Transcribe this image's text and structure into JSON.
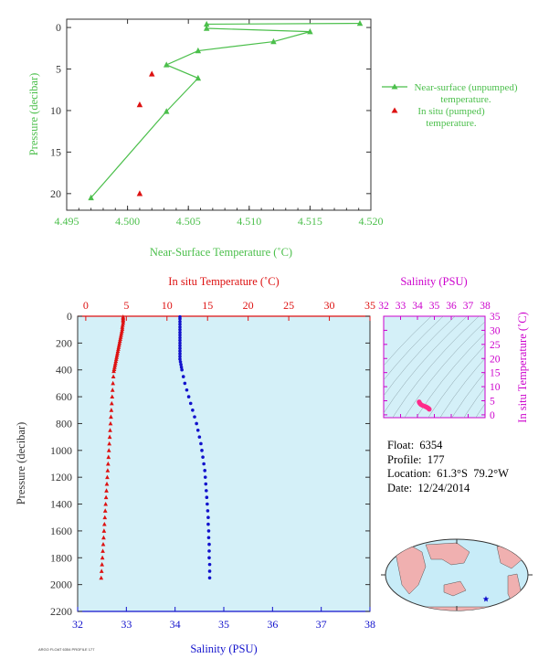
{
  "colors": {
    "green": "#4bbf4b",
    "red": "#dd1111",
    "blue": "#1111cc",
    "magenta": "#cc00cc",
    "axis_dark": "#333333",
    "plot_bg": "#d4f0f8",
    "ts_bg": "#d4f0f8",
    "map_ocean": "#c8ecf8",
    "map_land": "#f0b0b0"
  },
  "info": {
    "float": "Float:  6354",
    "profile": "Profile:  177",
    "location": "Location:  61.3°S  79.2°W",
    "date": "Date:  12/24/2014"
  },
  "footer_stamp": "ARGO FLOAT 6354 PROFILE 177",
  "chart_data": [
    {
      "type": "line",
      "xlabel": "Near-Surface Temperature (˚C)",
      "ylabel": "Pressure (decibar)",
      "xlim": [
        4.495,
        4.52
      ],
      "ylim": [
        22,
        -1
      ],
      "xticks": [
        "4.495",
        "4.500",
        "4.505",
        "4.510",
        "4.515",
        "4.520"
      ],
      "yticks": [
        "0",
        "5",
        "10",
        "15",
        "20"
      ],
      "legend_position": "right",
      "series": [
        {
          "name": "Near-surface (unpumped) temperature.",
          "marker": "triangle-line",
          "points": [
            {
              "x": 4.5191,
              "y": -0.5
            },
            {
              "x": 4.5065,
              "y": -0.4
            },
            {
              "x": 4.5065,
              "y": 0.1
            },
            {
              "x": 4.515,
              "y": 0.5
            },
            {
              "x": 4.512,
              "y": 1.7
            },
            {
              "x": 4.5058,
              "y": 2.8
            },
            {
              "x": 4.5032,
              "y": 4.5
            },
            {
              "x": 4.5058,
              "y": 6.1
            },
            {
              "x": 4.5032,
              "y": 10.1
            },
            {
              "x": 4.497,
              "y": 20.5
            }
          ]
        },
        {
          "name": "In situ (pumped) temperature.",
          "marker": "triangle",
          "points": [
            {
              "x": 4.502,
              "y": 5.6
            },
            {
              "x": 4.501,
              "y": 9.3
            },
            {
              "x": 4.501,
              "y": 20.0
            }
          ]
        }
      ]
    },
    {
      "type": "scatter",
      "ylabel": "Pressure (decibar)",
      "ylim": [
        2200,
        0
      ],
      "yticks": [
        "0",
        "200",
        "400",
        "600",
        "800",
        "1000",
        "1200",
        "1400",
        "1600",
        "1800",
        "2000",
        "2200"
      ],
      "temperature_axis": {
        "label": "In situ Temperature (˚C)",
        "lim": [
          -1,
          35
        ],
        "ticks": [
          "0",
          "5",
          "10",
          "15",
          "20",
          "25",
          "30",
          "35"
        ]
      },
      "salinity_axis": {
        "label": "Salinity (PSU)",
        "lim": [
          32,
          38
        ],
        "ticks": [
          "32",
          "33",
          "34",
          "35",
          "36",
          "37",
          "38"
        ]
      },
      "series": [
        {
          "name": "Temperature",
          "marker": "triangle",
          "points": [
            {
              "p": 5,
              "v": 4.6
            },
            {
              "p": 15,
              "v": 4.6
            },
            {
              "p": 25,
              "v": 4.6
            },
            {
              "p": 35,
              "v": 4.6
            },
            {
              "p": 50,
              "v": 4.6
            },
            {
              "p": 65,
              "v": 4.55
            },
            {
              "p": 80,
              "v": 4.5
            },
            {
              "p": 95,
              "v": 4.5
            },
            {
              "p": 110,
              "v": 4.45
            },
            {
              "p": 125,
              "v": 4.4
            },
            {
              "p": 140,
              "v": 4.35
            },
            {
              "p": 155,
              "v": 4.3
            },
            {
              "p": 170,
              "v": 4.25
            },
            {
              "p": 185,
              "v": 4.2
            },
            {
              "p": 200,
              "v": 4.15
            },
            {
              "p": 215,
              "v": 4.1
            },
            {
              "p": 230,
              "v": 4.05
            },
            {
              "p": 245,
              "v": 4.0
            },
            {
              "p": 260,
              "v": 3.95
            },
            {
              "p": 275,
              "v": 3.9
            },
            {
              "p": 290,
              "v": 3.85
            },
            {
              "p": 305,
              "v": 3.8
            },
            {
              "p": 320,
              "v": 3.75
            },
            {
              "p": 335,
              "v": 3.7
            },
            {
              "p": 350,
              "v": 3.65
            },
            {
              "p": 365,
              "v": 3.6
            },
            {
              "p": 380,
              "v": 3.55
            },
            {
              "p": 395,
              "v": 3.5
            },
            {
              "p": 410,
              "v": 3.45
            },
            {
              "p": 450,
              "v": 3.4
            },
            {
              "p": 500,
              "v": 3.35
            },
            {
              "p": 550,
              "v": 3.3
            },
            {
              "p": 600,
              "v": 3.25
            },
            {
              "p": 650,
              "v": 3.2
            },
            {
              "p": 700,
              "v": 3.15
            },
            {
              "p": 750,
              "v": 3.1
            },
            {
              "p": 800,
              "v": 3.05
            },
            {
              "p": 850,
              "v": 3.0
            },
            {
              "p": 900,
              "v": 2.95
            },
            {
              "p": 950,
              "v": 2.9
            },
            {
              "p": 1000,
              "v": 2.85
            },
            {
              "p": 1050,
              "v": 2.8
            },
            {
              "p": 1100,
              "v": 2.75
            },
            {
              "p": 1150,
              "v": 2.7
            },
            {
              "p": 1200,
              "v": 2.65
            },
            {
              "p": 1250,
              "v": 2.6
            },
            {
              "p": 1300,
              "v": 2.55
            },
            {
              "p": 1350,
              "v": 2.5
            },
            {
              "p": 1400,
              "v": 2.45
            },
            {
              "p": 1450,
              "v": 2.4
            },
            {
              "p": 1500,
              "v": 2.35
            },
            {
              "p": 1550,
              "v": 2.3
            },
            {
              "p": 1600,
              "v": 2.25
            },
            {
              "p": 1650,
              "v": 2.2
            },
            {
              "p": 1700,
              "v": 2.15
            },
            {
              "p": 1750,
              "v": 2.1
            },
            {
              "p": 1800,
              "v": 2.05
            },
            {
              "p": 1850,
              "v": 2.0
            },
            {
              "p": 1900,
              "v": 1.95
            },
            {
              "p": 1950,
              "v": 1.9
            }
          ]
        },
        {
          "name": "Salinity",
          "marker": "circle",
          "points": [
            {
              "p": 5,
              "v": 34.1
            },
            {
              "p": 20,
              "v": 34.1
            },
            {
              "p": 40,
              "v": 34.1
            },
            {
              "p": 60,
              "v": 34.1
            },
            {
              "p": 80,
              "v": 34.1
            },
            {
              "p": 100,
              "v": 34.1
            },
            {
              "p": 120,
              "v": 34.1
            },
            {
              "p": 140,
              "v": 34.1
            },
            {
              "p": 160,
              "v": 34.1
            },
            {
              "p": 180,
              "v": 34.1
            },
            {
              "p": 200,
              "v": 34.1
            },
            {
              "p": 220,
              "v": 34.1
            },
            {
              "p": 240,
              "v": 34.1
            },
            {
              "p": 260,
              "v": 34.1
            },
            {
              "p": 280,
              "v": 34.1
            },
            {
              "p": 300,
              "v": 34.1
            },
            {
              "p": 320,
              "v": 34.1
            },
            {
              "p": 340,
              "v": 34.11
            },
            {
              "p": 360,
              "v": 34.12
            },
            {
              "p": 380,
              "v": 34.13
            },
            {
              "p": 400,
              "v": 34.14
            },
            {
              "p": 450,
              "v": 34.17
            },
            {
              "p": 500,
              "v": 34.2
            },
            {
              "p": 550,
              "v": 34.24
            },
            {
              "p": 600,
              "v": 34.28
            },
            {
              "p": 650,
              "v": 34.32
            },
            {
              "p": 700,
              "v": 34.36
            },
            {
              "p": 750,
              "v": 34.4
            },
            {
              "p": 800,
              "v": 34.44
            },
            {
              "p": 850,
              "v": 34.47
            },
            {
              "p": 900,
              "v": 34.5
            },
            {
              "p": 950,
              "v": 34.53
            },
            {
              "p": 1000,
              "v": 34.55
            },
            {
              "p": 1050,
              "v": 34.57
            },
            {
              "p": 1100,
              "v": 34.59
            },
            {
              "p": 1150,
              "v": 34.61
            },
            {
              "p": 1200,
              "v": 34.62
            },
            {
              "p": 1250,
              "v": 34.63
            },
            {
              "p": 1300,
              "v": 34.64
            },
            {
              "p": 1350,
              "v": 34.65
            },
            {
              "p": 1400,
              "v": 34.66
            },
            {
              "p": 1450,
              "v": 34.67
            },
            {
              "p": 1500,
              "v": 34.68
            },
            {
              "p": 1550,
              "v": 34.68
            },
            {
              "p": 1600,
              "v": 34.69
            },
            {
              "p": 1650,
              "v": 34.69
            },
            {
              "p": 1700,
              "v": 34.7
            },
            {
              "p": 1750,
              "v": 34.7
            },
            {
              "p": 1800,
              "v": 34.7
            },
            {
              "p": 1850,
              "v": 34.71
            },
            {
              "p": 1900,
              "v": 34.71
            },
            {
              "p": 1950,
              "v": 34.71
            }
          ]
        }
      ]
    },
    {
      "type": "scatter",
      "xlabel": "Salinity (PSU)",
      "ylabel": "In situ Temperature (˚C)",
      "xlim": [
        32,
        38
      ],
      "ylim": [
        -1,
        35
      ],
      "xticks": [
        "32",
        "33",
        "34",
        "35",
        "36",
        "37",
        "38"
      ],
      "yticks": [
        "0",
        "5",
        "10",
        "15",
        "20",
        "25",
        "30",
        "35"
      ],
      "grid": "density isopleths",
      "points": [
        {
          "x": 34.1,
          "y": 4.6
        },
        {
          "x": 34.12,
          "y": 4.3
        },
        {
          "x": 34.15,
          "y": 4.0
        },
        {
          "x": 34.2,
          "y": 3.7
        },
        {
          "x": 34.28,
          "y": 3.4
        },
        {
          "x": 34.36,
          "y": 3.2
        },
        {
          "x": 34.45,
          "y": 3.0
        },
        {
          "x": 34.52,
          "y": 2.8
        },
        {
          "x": 34.58,
          "y": 2.6
        },
        {
          "x": 34.63,
          "y": 2.4
        },
        {
          "x": 34.67,
          "y": 2.2
        },
        {
          "x": 34.7,
          "y": 2.0
        }
      ]
    },
    {
      "type": "map",
      "projection": "world-oval",
      "marker": {
        "lat": -61.3,
        "lon": -79.2
      }
    }
  ]
}
